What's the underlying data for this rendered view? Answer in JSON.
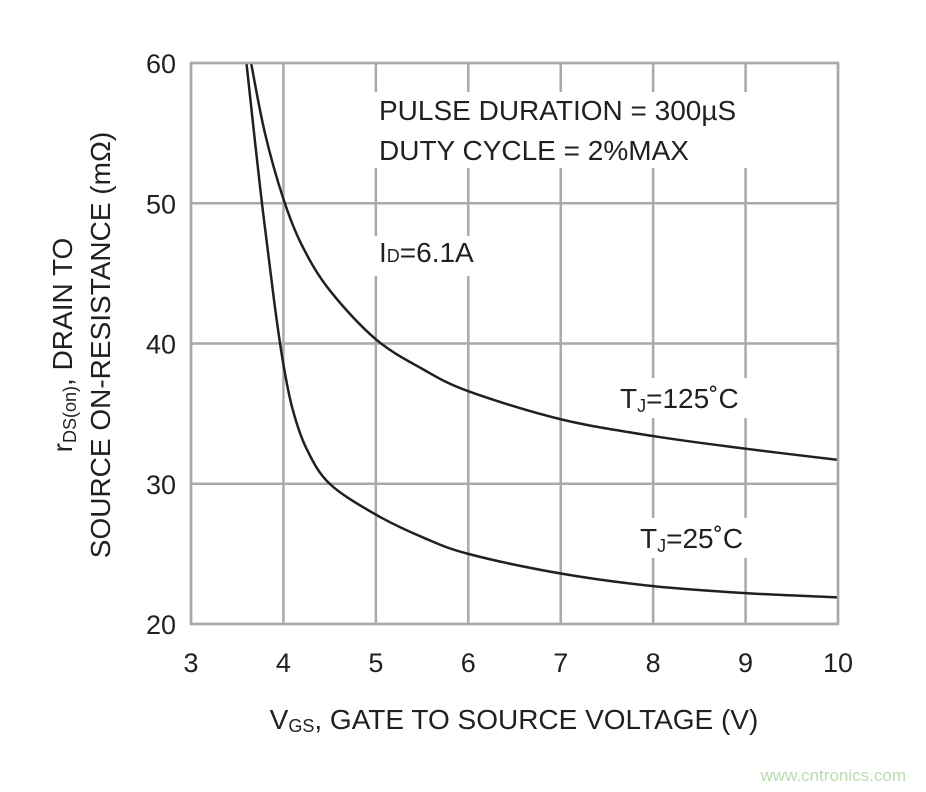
{
  "chart_data": {
    "type": "line",
    "xlabel_main": "V",
    "xlabel_sub": "GS",
    "xlabel_rest": ", GATE TO SOURCE VOLTAGE (V)",
    "ylabel_line1_main": "r",
    "ylabel_line1_sub": "DS(on)",
    "ylabel_line1_rest": ", DRAIN TO",
    "ylabel_line2": "SOURCE ON-RESISTANCE (mΩ)",
    "xlim": [
      3,
      10
    ],
    "ylim": [
      20,
      60
    ],
    "xticks": [
      "3",
      "4",
      "5",
      "6",
      "7",
      "8",
      "9",
      "10"
    ],
    "yticks": [
      "20",
      "30",
      "40",
      "50",
      "60"
    ],
    "grid": true,
    "annotations": {
      "pulse": "PULSE DURATION = 300µS",
      "duty": "DUTY CYCLE = 2%MAX",
      "id_main": "I",
      "id_sub": "D",
      "id_rest": "=6.1A"
    },
    "series": [
      {
        "name_main": "T",
        "name_sub": "J",
        "name_rest": "=125˚C",
        "x": [
          3.65,
          3.8,
          4.0,
          4.2,
          4.5,
          5.0,
          5.5,
          6.0,
          7.0,
          8.0,
          9.0,
          10.0
        ],
        "y": [
          60,
          55,
          50.3,
          47,
          43.8,
          40.3,
          38.2,
          36.6,
          34.6,
          33.4,
          32.5,
          31.7
        ]
      },
      {
        "name_main": "T",
        "name_sub": "J",
        "name_rest": "=25˚C",
        "x": [
          3.6,
          3.75,
          3.9,
          4.0,
          4.1,
          4.25,
          4.5,
          5.0,
          5.5,
          6.0,
          7.0,
          8.0,
          9.0,
          10.0
        ],
        "y": [
          60,
          51,
          43,
          38.5,
          35.3,
          32.5,
          30,
          27.8,
          26.2,
          25,
          23.6,
          22.7,
          22.2,
          21.9
        ]
      }
    ],
    "colors": {
      "line": "#231f20",
      "grid": "#a7a9ac"
    }
  },
  "watermark": "www.cntronics.com"
}
